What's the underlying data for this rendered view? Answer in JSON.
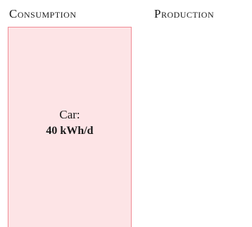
{
  "chart_data": {
    "type": "bar",
    "columns": [
      "Consumption",
      "Production"
    ],
    "series": [
      {
        "column": "Consumption",
        "category": "Car",
        "label": "Car:",
        "value": 40,
        "value_text": "40 kWh/d",
        "unit": "kWh/d",
        "fill": "#fde4e6",
        "stroke": "#f08a94"
      }
    ],
    "title": "",
    "xlabel": "",
    "ylabel": "",
    "grid": false
  }
}
